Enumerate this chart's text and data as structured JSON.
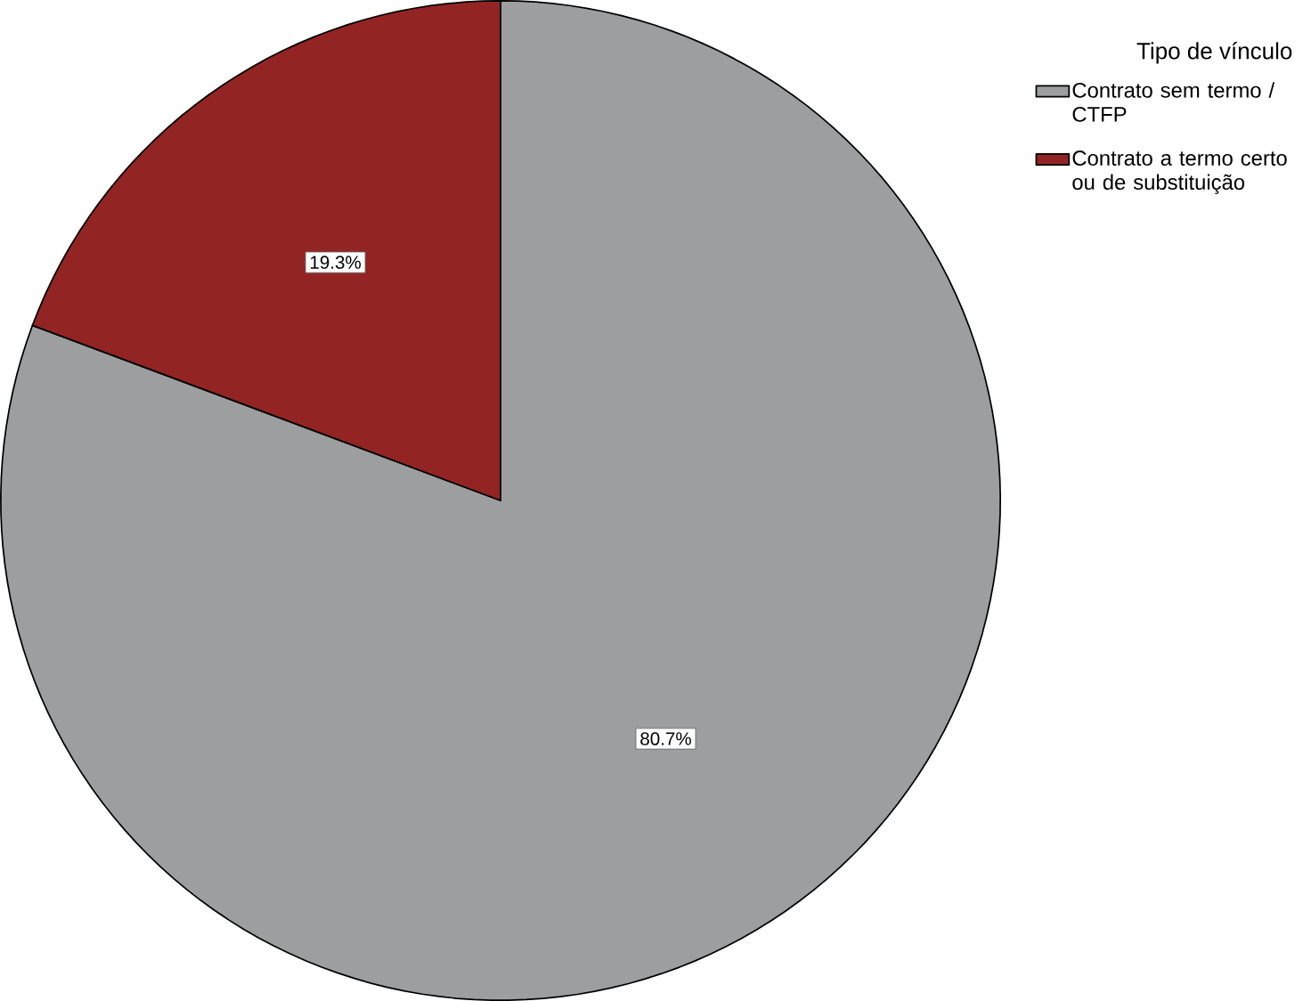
{
  "chart_data": {
    "type": "pie",
    "legend_title": "Tipo de vínculo",
    "categories": [
      "Contrato sem termo / CTFP",
      "Contrato a termo certo ou de substituição"
    ],
    "values": [
      80.7,
      19.3
    ],
    "colors": [
      "#9d9ea0",
      "#922524"
    ],
    "value_labels": [
      "80.7%",
      "19.3%"
    ],
    "legend": "top right"
  }
}
